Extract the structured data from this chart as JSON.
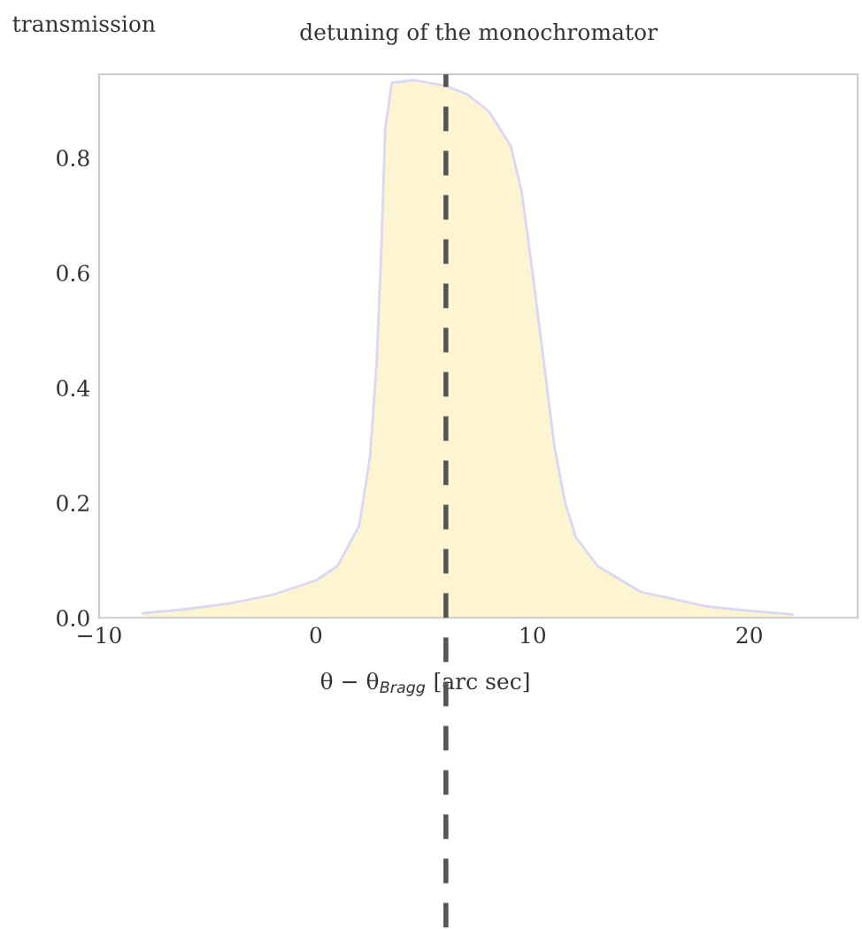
{
  "chart_data": {
    "type": "area",
    "title": "detuning of the monochromator",
    "ylabel": "transmission",
    "xlabel": "θ − θ$_{Bragg}$ [arc sec]",
    "series": [
      {
        "color": "#fdf5d2",
        "x": [
          -8,
          -6,
          -4,
          -2,
          0,
          1,
          2,
          2.5,
          2.8,
          3,
          3.2,
          3.5,
          4.5,
          6,
          7,
          8,
          9,
          9.5,
          10,
          10.5,
          11,
          11.5,
          12,
          13,
          15,
          18,
          20,
          22
        ],
        "values": [
          0.008,
          0.015,
          0.025,
          0.04,
          0.065,
          0.09,
          0.16,
          0.28,
          0.44,
          0.62,
          0.85,
          0.93,
          0.935,
          0.925,
          0.91,
          0.88,
          0.82,
          0.74,
          0.6,
          0.45,
          0.3,
          0.2,
          0.14,
          0.09,
          0.045,
          0.02,
          0.012,
          0.006
        ]
      }
    ],
    "xlim": [
      -10,
      25
    ],
    "ylim": [
      0,
      0.945
    ],
    "xticks": [
      {
        "value": -10,
        "label": "−10"
      },
      0,
      10,
      20
    ],
    "yticks": [
      {
        "value": 0,
        "label": "0.0"
      },
      0.2,
      0.4,
      0.6,
      0.8
    ],
    "ref_lines": [
      {
        "axis": "x",
        "value": 6,
        "label": null,
        "color": "#555555",
        "line_style": "dashed"
      }
    ],
    "grid": false,
    "legend": false
  }
}
